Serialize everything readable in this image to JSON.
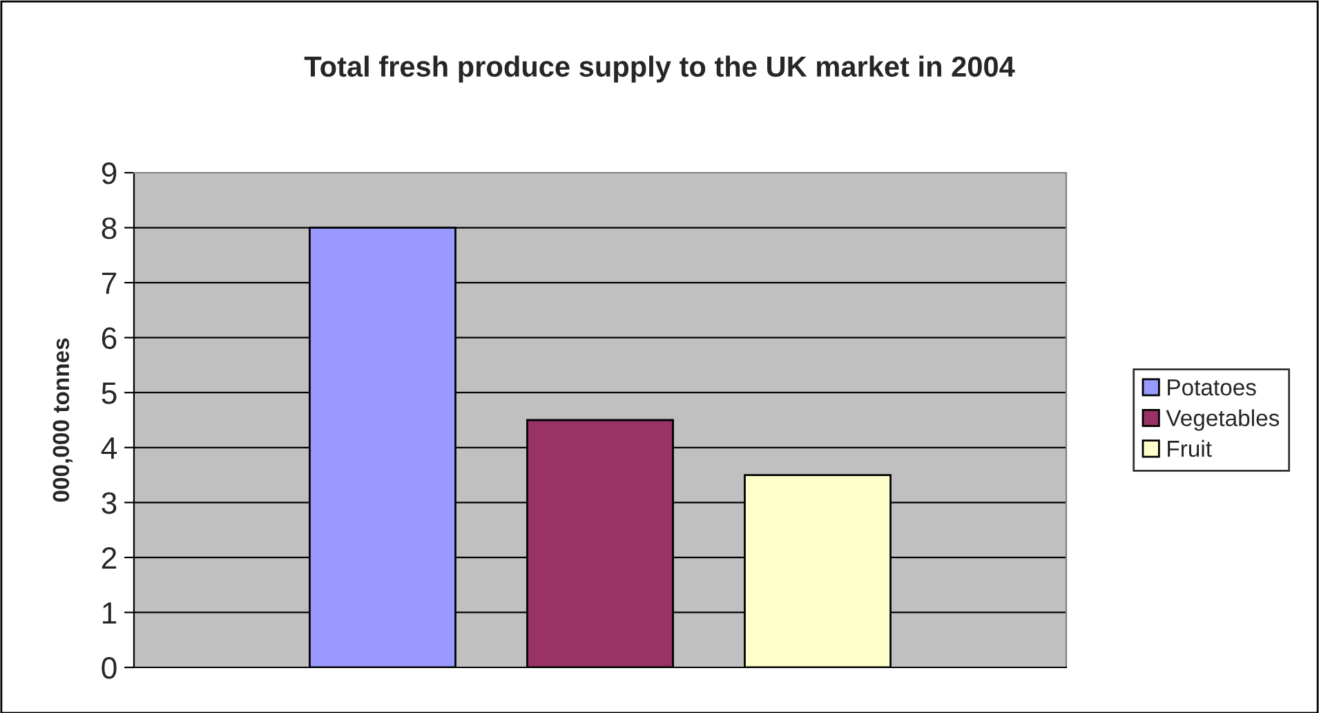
{
  "chart_data": {
    "type": "bar",
    "title": "Total fresh produce supply to the UK market in 2004",
    "ylabel": "000,000 tonnes",
    "categories": [
      null
    ],
    "series": [
      {
        "name": "Potatoes",
        "color": "#9999ff",
        "values": [
          8
        ]
      },
      {
        "name": "Vegetables",
        "color": "#993366",
        "values": [
          4.5
        ]
      },
      {
        "name": "Fruit",
        "color": "#ffffcc",
        "values": [
          3.5
        ]
      }
    ],
    "ylim": [
      0,
      9
    ],
    "yticks": [
      0,
      1,
      2,
      3,
      4,
      5,
      6,
      7,
      8,
      9
    ],
    "grid": "y",
    "legend": "right"
  }
}
